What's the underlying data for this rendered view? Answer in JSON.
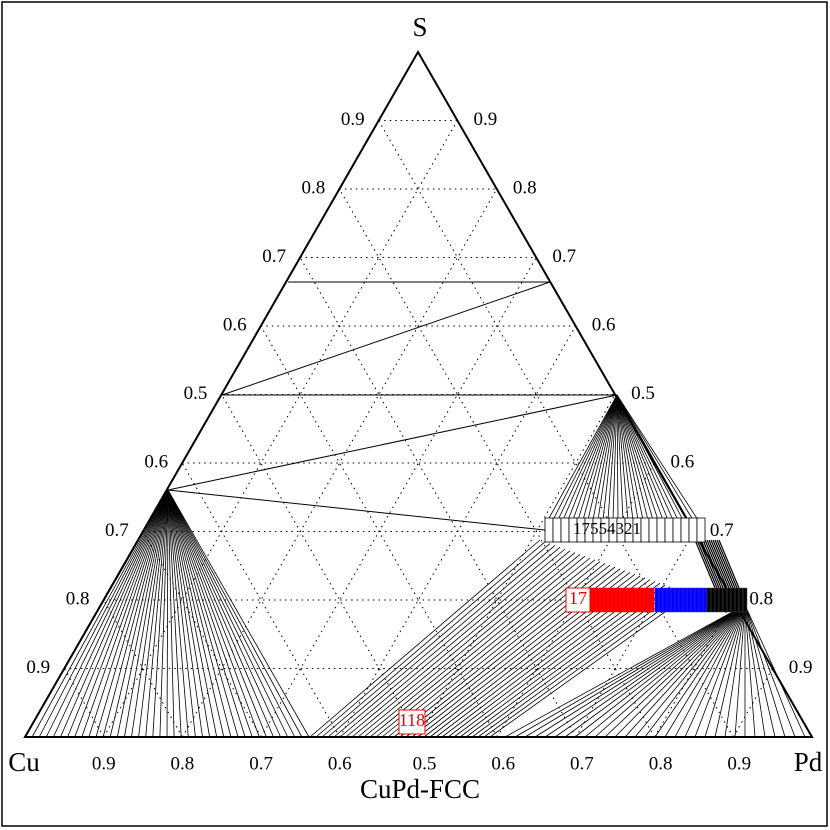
{
  "title": "S",
  "corners": {
    "left": "Cu",
    "right": "Pd"
  },
  "bottom_label": "CuPd-FCC",
  "left_ticks": [
    "0.9",
    "0.8",
    "0.7",
    "0.6",
    "0.5",
    "0.6",
    "0.7",
    "0.8",
    "0.9"
  ],
  "right_ticks": [
    "0.9",
    "0.8",
    "0.7",
    "0.6",
    "0.5",
    "0.6",
    "0.7",
    "0.8",
    "0.9"
  ],
  "bottom_ticks": [
    "0.9",
    "0.8",
    "0.7",
    "0.6",
    "0.5",
    "0.6",
    "0.7",
    "0.8",
    "0.9"
  ],
  "box_labels": {
    "upper": "17554321",
    "middle": "17",
    "bottom": "118"
  }
}
